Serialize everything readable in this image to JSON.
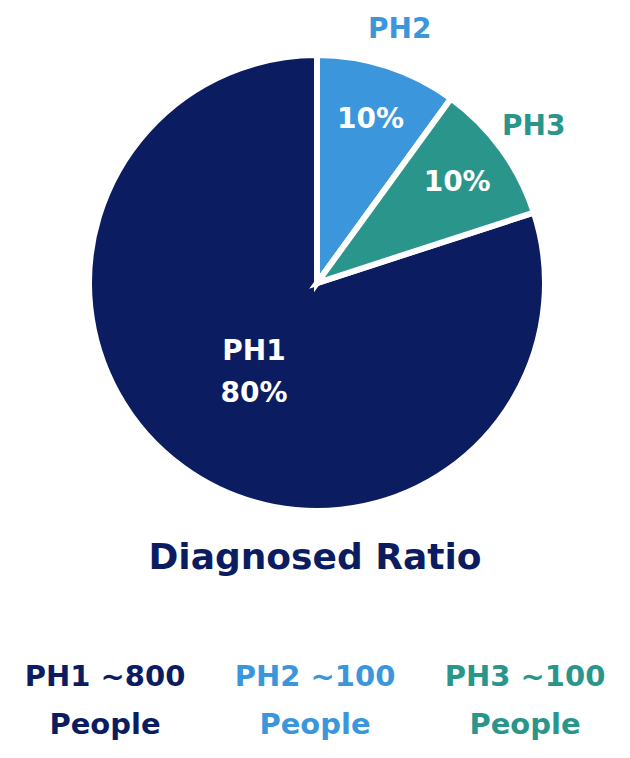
{
  "chart_data": {
    "type": "pie",
    "title": "Diagnosed Ratio",
    "categories": [
      "PH1",
      "PH2",
      "PH3"
    ],
    "values": [
      80,
      10,
      10
    ],
    "value_labels": [
      "80%",
      "10%",
      "10%"
    ],
    "colors": [
      "#0c1c60",
      "#3c96dc",
      "#2a958a"
    ],
    "data_labels": true,
    "annotations": [
      "PH1 ~800 People",
      "PH2 ~100 People",
      "PH3 ~100 People"
    ]
  }
}
